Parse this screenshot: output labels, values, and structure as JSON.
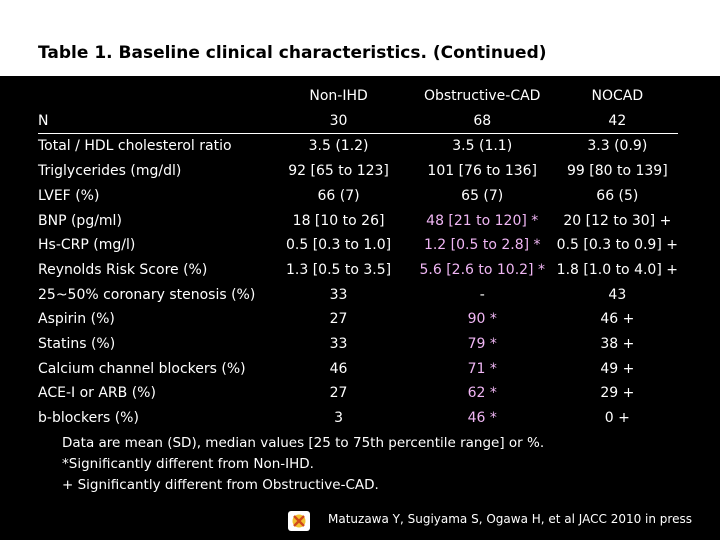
{
  "title": "Table 1. Baseline clinical characteristics. (Continued)",
  "table": {
    "columns": [
      "",
      "Non-IHD",
      "Obstructive-CAD",
      "NOCAD"
    ],
    "rows": [
      {
        "label": "N",
        "non_ihd": "30",
        "obstructive_cad": "68",
        "nocad": "42"
      },
      {
        "label": "Total / HDL cholesterol ratio",
        "non_ihd": "3.5 (1.2)",
        "obstructive_cad": "3.5 (1.1)",
        "nocad": "3.3 (0.9)"
      },
      {
        "label": "Triglycerides (mg/dl)",
        "non_ihd": "92 [65 to 123]",
        "obstructive_cad": "101 [76 to 136]",
        "nocad": "99 [80 to 139]"
      },
      {
        "label": "LVEF (%)",
        "non_ihd": "66 (7)",
        "obstructive_cad": "65 (7)",
        "nocad": "66 (5)"
      },
      {
        "label": "BNP (pg/ml)",
        "non_ihd": "18 [10 to 26]",
        "obstructive_cad": "48 [21 to 120] *",
        "nocad": "20 [12 to 30] +"
      },
      {
        "label": "Hs-CRP (mg/l)",
        "non_ihd": "0.5 [0.3 to 1.0]",
        "obstructive_cad": "1.2 [0.5 to 2.8] *",
        "nocad": "0.5 [0.3 to 0.9] +"
      },
      {
        "label": "Reynolds Risk Score (%)",
        "non_ihd": "1.3 [0.5 to 3.5]",
        "obstructive_cad": "5.6 [2.6 to 10.2] *",
        "nocad": "1.8 [1.0 to 4.0] +"
      },
      {
        "label": "25~50% coronary stenosis (%)",
        "non_ihd": "33",
        "obstructive_cad": "-",
        "nocad": "43"
      },
      {
        "label": "Aspirin (%)",
        "non_ihd": "27",
        "obstructive_cad": "90 *",
        "nocad": "46 +"
      },
      {
        "label": "Statins (%)",
        "non_ihd": "33",
        "obstructive_cad": "79 *",
        "nocad": "38 +"
      },
      {
        "label": "Calcium channel blockers (%)",
        "non_ihd": "46",
        "obstructive_cad": "71 *",
        "nocad": "49 +"
      },
      {
        "label": "ACE-I or ARB (%)",
        "non_ihd": "27",
        "obstructive_cad": "62 *",
        "nocad": "29 +"
      },
      {
        "label": "b-blockers (%)",
        "non_ihd": "3",
        "obstructive_cad": "46 *",
        "nocad": "0 +"
      }
    ]
  },
  "footnotes": [
    "Data are mean (SD), median values [25 to 75th percentile range] or %.",
    "*Significantly different from Non-IHD.",
    "+ Significantly different from Obstructive-CAD."
  ],
  "citation": "Matuzawa Y, Sugiyama S, Ogawa H, et al JACC 2010 in press",
  "colors": {
    "background": "#000000",
    "title_bar": "#ffffff",
    "text": "#ffffff",
    "highlight": "#f0b6f4"
  }
}
